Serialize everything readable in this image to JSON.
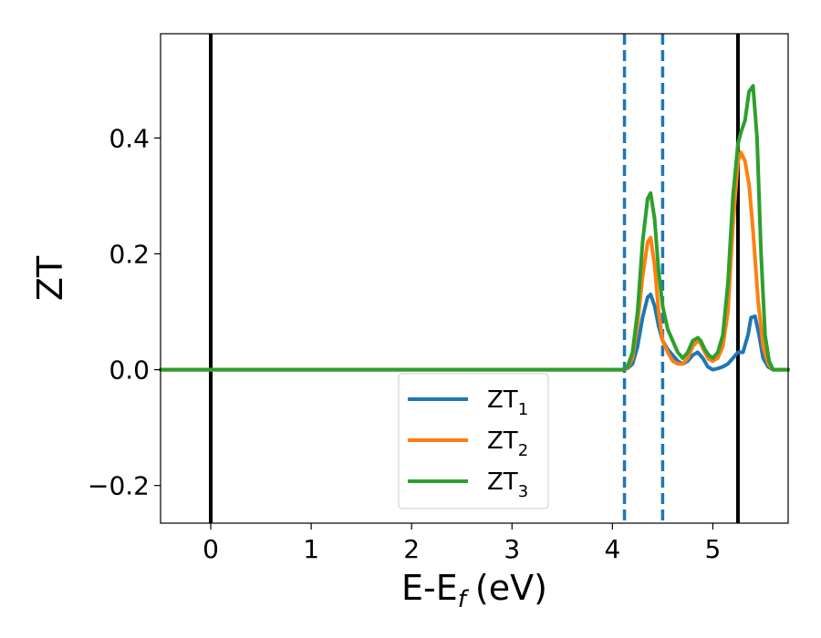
{
  "chart_data": {
    "type": "line",
    "xlabel": "E-E",
    "xlabel_sub": "f",
    "xlabel_unit": "(eV)",
    "ylabel": "ZT",
    "xlim": [
      -0.5,
      5.75
    ],
    "ylim": [
      -0.265,
      0.58
    ],
    "xticks": [
      0,
      1,
      2,
      3,
      4,
      5
    ],
    "xtick_labels": [
      "0",
      "1",
      "2",
      "3",
      "4",
      "5"
    ],
    "yticks": [
      -0.2,
      0.0,
      0.2,
      0.4
    ],
    "ytick_labels": [
      "−0.2",
      "0.0",
      "0.2",
      "0.4"
    ],
    "grid": false,
    "legend_position": "bottom-center",
    "vertical_lines": [
      {
        "x": 0.0,
        "style": "solid",
        "color": "#000000"
      },
      {
        "x": 4.12,
        "style": "dashed",
        "color": "#1f77b4"
      },
      {
        "x": 4.5,
        "style": "dashed",
        "color": "#1f77b4"
      },
      {
        "x": 5.25,
        "style": "solid",
        "color": "#000000"
      }
    ],
    "series": [
      {
        "name": "ZT",
        "name_sub": "1",
        "color": "#1f77b4",
        "x": [
          -0.5,
          4.0,
          4.1,
          4.15,
          4.2,
          4.25,
          4.3,
          4.35,
          4.38,
          4.42,
          4.46,
          4.5,
          4.55,
          4.6,
          4.65,
          4.7,
          4.75,
          4.8,
          4.85,
          4.9,
          4.95,
          5.0,
          5.05,
          5.1,
          5.15,
          5.2,
          5.25,
          5.3,
          5.35,
          5.38,
          5.42,
          5.46,
          5.5,
          5.55,
          5.6,
          5.75
        ],
        "y": [
          0.0,
          0.0,
          0.0,
          0.002,
          0.01,
          0.04,
          0.09,
          0.125,
          0.13,
          0.11,
          0.075,
          0.05,
          0.035,
          0.025,
          0.015,
          0.01,
          0.015,
          0.025,
          0.03,
          0.02,
          0.005,
          0.0,
          0.002,
          0.005,
          0.01,
          0.02,
          0.03,
          0.03,
          0.06,
          0.09,
          0.092,
          0.06,
          0.02,
          0.005,
          0.0,
          0.0
        ]
      },
      {
        "name": "ZT",
        "name_sub": "2",
        "color": "#ff7f0e",
        "x": [
          -0.5,
          4.0,
          4.1,
          4.15,
          4.2,
          4.25,
          4.3,
          4.35,
          4.38,
          4.42,
          4.46,
          4.5,
          4.55,
          4.6,
          4.65,
          4.7,
          4.75,
          4.8,
          4.85,
          4.88,
          4.92,
          4.96,
          5.0,
          5.05,
          5.1,
          5.15,
          5.2,
          5.25,
          5.28,
          5.32,
          5.36,
          5.4,
          5.45,
          5.5,
          5.55,
          5.6,
          5.75
        ],
        "y": [
          0.0,
          0.0,
          0.0,
          0.003,
          0.02,
          0.08,
          0.16,
          0.22,
          0.228,
          0.18,
          0.1,
          0.05,
          0.03,
          0.015,
          0.01,
          0.01,
          0.02,
          0.04,
          0.05,
          0.045,
          0.03,
          0.018,
          0.015,
          0.02,
          0.04,
          0.1,
          0.25,
          0.36,
          0.375,
          0.36,
          0.32,
          0.24,
          0.12,
          0.04,
          0.01,
          0.0,
          0.0
        ]
      },
      {
        "name": "ZT",
        "name_sub": "3",
        "color": "#2ca02c",
        "x": [
          -0.5,
          4.0,
          4.1,
          4.15,
          4.2,
          4.25,
          4.3,
          4.35,
          4.38,
          4.42,
          4.46,
          4.5,
          4.55,
          4.6,
          4.65,
          4.7,
          4.75,
          4.8,
          4.85,
          4.88,
          4.92,
          4.96,
          5.0,
          5.05,
          5.1,
          5.15,
          5.2,
          5.25,
          5.28,
          5.32,
          5.36,
          5.4,
          5.44,
          5.48,
          5.52,
          5.56,
          5.6,
          5.75
        ],
        "y": [
          0.0,
          0.0,
          0.0,
          0.005,
          0.03,
          0.1,
          0.22,
          0.295,
          0.305,
          0.26,
          0.17,
          0.11,
          0.07,
          0.05,
          0.03,
          0.02,
          0.03,
          0.05,
          0.055,
          0.05,
          0.035,
          0.025,
          0.02,
          0.03,
          0.06,
          0.15,
          0.3,
          0.39,
          0.41,
          0.43,
          0.48,
          0.49,
          0.4,
          0.2,
          0.06,
          0.015,
          0.0,
          0.0
        ]
      }
    ]
  }
}
